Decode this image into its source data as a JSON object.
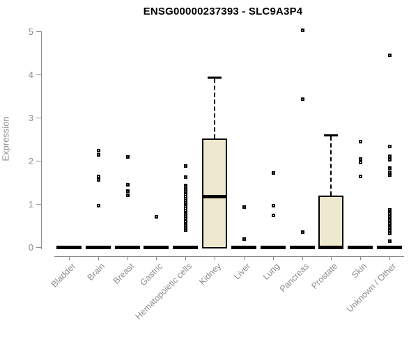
{
  "chart_data": {
    "type": "boxplot",
    "title": "ENSG00000237393 - SLC9A3P4",
    "ylabel": "Expression",
    "xlabel": "",
    "ylim": [
      0,
      5
    ],
    "yticks": [
      "0",
      "1",
      "2",
      "3",
      "4",
      "5"
    ],
    "grid": false,
    "legend": false,
    "categories": [
      "Bladder",
      "Brain",
      "Breast",
      "Gastric",
      "Hematopoietic cells",
      "Kidney",
      "Liver",
      "Lung",
      "Pancreas",
      "Prostate",
      "Skin",
      "Unknown / Other"
    ],
    "boxes": [
      {
        "category": "Bladder",
        "q1": 0,
        "median": 0,
        "q3": 0,
        "whisker_low": 0,
        "whisker_high": 0,
        "outliers": []
      },
      {
        "category": "Brain",
        "q1": 0,
        "median": 0,
        "q3": 0,
        "whisker_low": 0,
        "whisker_high": 0,
        "outliers": [
          2.25,
          2.15,
          1.64,
          1.57,
          0.97
        ]
      },
      {
        "category": "Breast",
        "q1": 0,
        "median": 0,
        "q3": 0,
        "whisker_low": 0,
        "whisker_high": 0,
        "outliers": [
          2.1,
          1.45,
          1.31,
          1.21
        ]
      },
      {
        "category": "Gastric",
        "q1": 0,
        "median": 0,
        "q3": 0,
        "whisker_low": 0,
        "whisker_high": 0,
        "outliers": [
          0.71
        ]
      },
      {
        "category": "Hematopoietic cells",
        "q1": 0,
        "median": 0,
        "q3": 0,
        "whisker_low": 0,
        "whisker_high": 0,
        "outliers": [
          1.88,
          1.63,
          1.44,
          1.4,
          1.35,
          1.31,
          1.26,
          1.22,
          1.17,
          1.13,
          1.08,
          1.04,
          0.99,
          0.95,
          0.9,
          0.86,
          0.81,
          0.77,
          0.72,
          0.68,
          0.63,
          0.59,
          0.54,
          0.5,
          0.45,
          0.41
        ]
      },
      {
        "category": "Kidney",
        "q1": 0,
        "median": 1.18,
        "q3": 2.52,
        "whisker_low": 0,
        "whisker_high": 3.93,
        "outliers": []
      },
      {
        "category": "Liver",
        "q1": 0,
        "median": 0,
        "q3": 0,
        "whisker_low": 0,
        "whisker_high": 0,
        "outliers": [
          0.93,
          0.2
        ]
      },
      {
        "category": "Lung",
        "q1": 0,
        "median": 0,
        "q3": 0,
        "whisker_low": 0,
        "whisker_high": 0,
        "outliers": [
          1.72,
          0.97,
          0.75
        ]
      },
      {
        "category": "Pancreas",
        "q1": 0,
        "median": 0,
        "q3": 0,
        "whisker_low": 0,
        "whisker_high": 0,
        "outliers": [
          5.03,
          3.44,
          0.35
        ]
      },
      {
        "category": "Prostate",
        "q1": 0,
        "median": 0,
        "q3": 1.2,
        "whisker_low": 0,
        "whisker_high": 2.6,
        "outliers": []
      },
      {
        "category": "Skin",
        "q1": 0,
        "median": 0,
        "q3": 0,
        "whisker_low": 0,
        "whisker_high": 0,
        "outliers": [
          2.45,
          2.05,
          1.97,
          1.65
        ]
      },
      {
        "category": "Unknown / Other",
        "q1": 0,
        "median": 0,
        "q3": 0,
        "whisker_low": 0,
        "whisker_high": 0,
        "outliers": [
          4.45,
          2.34,
          2.11,
          2.03,
          1.84,
          1.75,
          1.68,
          0.87,
          0.79,
          0.71,
          0.63,
          0.55,
          0.47,
          0.39,
          0.33,
          0.15
        ]
      }
    ],
    "colors": {
      "box_fill": "#EDE8CE",
      "box_border": "#000000",
      "axis": "#8C8C8C",
      "title_color": "#000000"
    }
  }
}
